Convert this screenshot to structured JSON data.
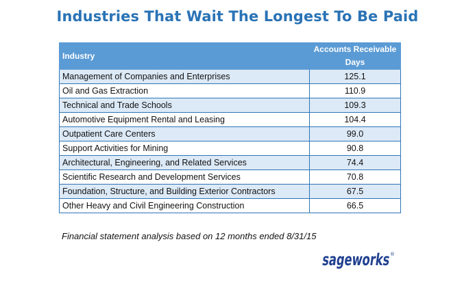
{
  "title": "Industries That Wait The Longest To Be Paid",
  "chart_data": {
    "type": "table",
    "title": "Industries That Wait The Longest To Be Paid",
    "columns": [
      "Industry",
      "Accounts Receivable Days"
    ],
    "header": {
      "industry": "Industry",
      "days_line1": "Accounts Receivable",
      "days_line2": "Days"
    },
    "rows": [
      {
        "industry": "Management of Companies and Enterprises",
        "days": "125.1"
      },
      {
        "industry": "Oil and Gas Extraction",
        "days": "110.9"
      },
      {
        "industry": "Technical and Trade Schools",
        "days": "109.3"
      },
      {
        "industry": "Automotive Equipment Rental and Leasing",
        "days": "104.4"
      },
      {
        "industry": "Outpatient Care Centers",
        "days": "99.0"
      },
      {
        "industry": "Support Activities for Mining",
        "days": "90.8"
      },
      {
        "industry": "Architectural, Engineering, and Related Services",
        "days": "74.4"
      },
      {
        "industry": "Scientific Research and Development Services",
        "days": "70.8"
      },
      {
        "industry": "Foundation, Structure, and Building Exterior Contractors",
        "days": "67.5"
      },
      {
        "industry": "Other Heavy and Civil Engineering Construction",
        "days": "66.5"
      }
    ]
  },
  "footnote": "Financial statement analysis based on 12 months ended 8/31/15",
  "logo": {
    "text": "sageworks",
    "registered": "®",
    "color": "#1f3f8f"
  },
  "colors": {
    "title": "#2a73b5",
    "header_bg": "#5b9bd5",
    "row_alt": "#dce9f6",
    "border": "#2e75b6"
  }
}
